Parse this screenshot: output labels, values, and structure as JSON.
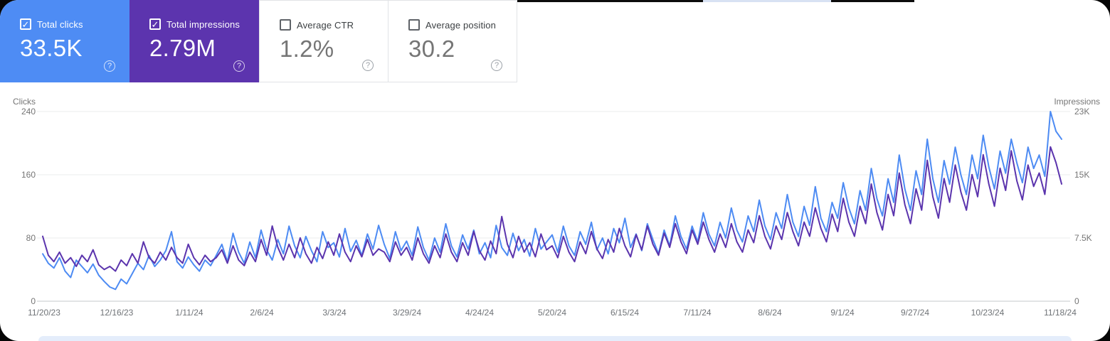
{
  "colors": {
    "clicks_accent": "#4e8cf4",
    "impressions_accent": "#5c34ae",
    "clicks_line": "#4d8bf3",
    "impressions_line": "#5b34ad",
    "gridline": "#ebeced",
    "baseline": "#c6c9cb",
    "axis_text": "#757575",
    "card_border": "#e1e3e6",
    "table_strip": "#e4edfb"
  },
  "cards": [
    {
      "label": "Total clicks",
      "value": "33.5K",
      "checked": true,
      "help_icon": "?"
    },
    {
      "label": "Total impressions",
      "value": "2.79M",
      "checked": true,
      "help_icon": "?"
    },
    {
      "label": "Average CTR",
      "value": "1.2%",
      "checked": false,
      "help_icon": "?"
    },
    {
      "label": "Average position",
      "value": "30.2",
      "checked": false,
      "help_icon": "?"
    }
  ],
  "chart_data": {
    "type": "line",
    "left_axis": {
      "title": "Clicks",
      "ticks": [
        "240",
        "160",
        "80",
        "0"
      ],
      "range": [
        0,
        240
      ]
    },
    "right_axis": {
      "title": "Impressions",
      "ticks": [
        "23K",
        "15K",
        "7.5K",
        "0"
      ],
      "range": [
        0,
        23000
      ]
    },
    "x_ticks": [
      "11/20/23",
      "12/16/23",
      "1/11/24",
      "2/6/24",
      "3/3/24",
      "3/29/24",
      "4/24/24",
      "5/20/24",
      "6/15/24",
      "7/11/24",
      "8/6/24",
      "9/1/24",
      "9/27/24",
      "10/23/24",
      "11/18/24"
    ],
    "x_start": "11/20/23",
    "x_end": "11/18/24",
    "sample_interval_days": 2,
    "grid": true,
    "series": [
      {
        "name": "Clicks",
        "axis": "left",
        "values": [
          60,
          48,
          42,
          55,
          38,
          30,
          52,
          44,
          36,
          47,
          33,
          25,
          18,
          15,
          28,
          22,
          35,
          48,
          40,
          58,
          44,
          52,
          64,
          88,
          50,
          42,
          56,
          46,
          38,
          52,
          45,
          58,
          72,
          50,
          86,
          62,
          48,
          75,
          55,
          90,
          65,
          52,
          78,
          60,
          95,
          70,
          55,
          82,
          64,
          50,
          88,
          68,
          74,
          56,
          92,
          63,
          77,
          58,
          85,
          66,
          96,
          72,
          54,
          88,
          64,
          76,
          58,
          94,
          68,
          52,
          80,
          62,
          98,
          70,
          56,
          84,
          66,
          90,
          60,
          74,
          55,
          96,
          68,
          58,
          86,
          64,
          78,
          57,
          92,
          66,
          75,
          84,
          62,
          95,
          70,
          58,
          88,
          72,
          100,
          65,
          80,
          60,
          92,
          74,
          105,
          68,
          85,
          64,
          98,
          78,
          60,
          90,
          70,
          108,
          82,
          66,
          95,
          75,
          112,
          85,
          70,
          100,
          80,
          118,
          90,
          75,
          108,
          88,
          128,
          95,
          78,
          112,
          92,
          135,
          100,
          82,
          120,
          96,
          145,
          105,
          88,
          125,
          105,
          150,
          118,
          98,
          140,
          115,
          168,
          130,
          108,
          155,
          125,
          185,
          142,
          115,
          165,
          135,
          205,
          155,
          125,
          178,
          148,
          195,
          160,
          135,
          185,
          155,
          210,
          170,
          142,
          190,
          162,
          205,
          175,
          150,
          195,
          168,
          185,
          158,
          240,
          215,
          205
        ]
      },
      {
        "name": "Impressions",
        "axis": "right",
        "values": [
          7870,
          5570,
          4800,
          5950,
          4610,
          5280,
          4220,
          5570,
          4800,
          6240,
          4420,
          3840,
          4220,
          3650,
          4990,
          4320,
          5760,
          4610,
          7200,
          5280,
          4610,
          5950,
          4990,
          6530,
          5280,
          4610,
          6910,
          5280,
          4420,
          5570,
          4800,
          5280,
          6240,
          4610,
          6720,
          4990,
          4320,
          5950,
          4800,
          7490,
          5570,
          9120,
          6530,
          4990,
          6910,
          5280,
          7680,
          5760,
          4610,
          6530,
          5180,
          7200,
          5570,
          8160,
          5950,
          4800,
          6720,
          5380,
          7490,
          5570,
          6340,
          5950,
          4800,
          7200,
          5570,
          6530,
          4990,
          7680,
          5760,
          4610,
          6720,
          5280,
          8160,
          5950,
          4800,
          7100,
          5570,
          8450,
          6140,
          4990,
          7300,
          5760,
          10270,
          6910,
          5280,
          7870,
          5950,
          7100,
          5380,
          8160,
          6240,
          6720,
          5280,
          7870,
          5950,
          4800,
          7200,
          5760,
          8450,
          6340,
          5180,
          7490,
          5950,
          8830,
          6720,
          5380,
          8060,
          6240,
          9120,
          6910,
          5570,
          8260,
          6530,
          9410,
          7200,
          5760,
          8640,
          6910,
          9600,
          7490,
          5950,
          8160,
          6530,
          9410,
          7200,
          5950,
          8640,
          7100,
          10370,
          7870,
          6340,
          9120,
          7490,
          10750,
          8450,
          6720,
          9600,
          7870,
          11330,
          8830,
          7200,
          10560,
          8450,
          12480,
          9600,
          7870,
          11520,
          9410,
          14210,
          10750,
          8640,
          12960,
          10370,
          15550,
          11710,
          9410,
          13630,
          11040,
          17090,
          12670,
          10080,
          14880,
          12000,
          16510,
          13250,
          11040,
          15360,
          12670,
          17760,
          14210,
          11520,
          16130,
          13440,
          18240,
          14590,
          12290,
          16510,
          13920,
          15550,
          12960,
          18720,
          16800,
          14210
        ]
      }
    ]
  }
}
